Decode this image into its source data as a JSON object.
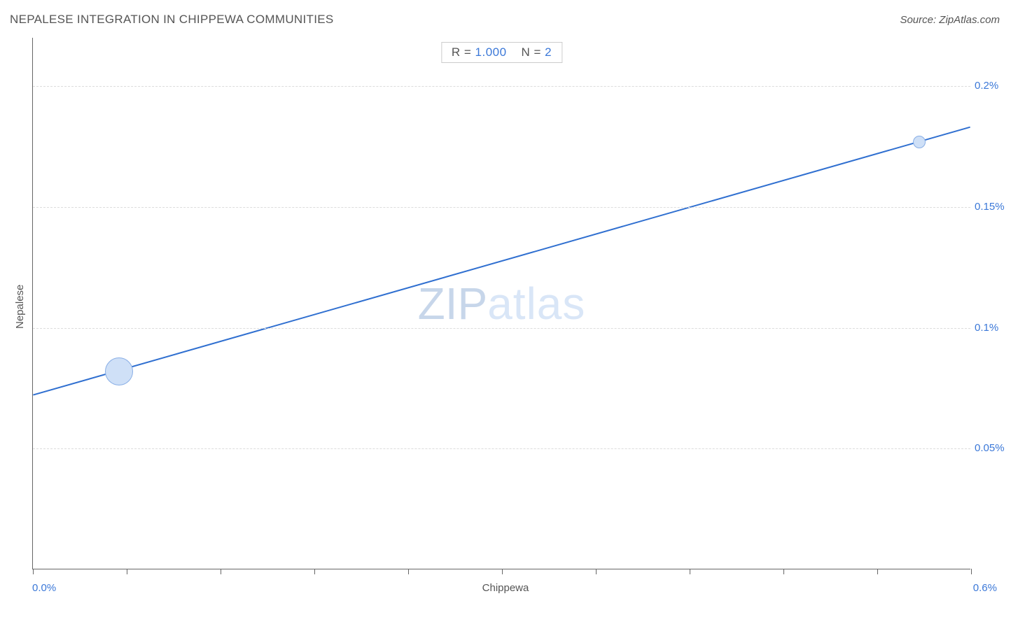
{
  "title": "NEPALESE INTEGRATION IN CHIPPEWA COMMUNITIES",
  "source": "Source: ZipAtlas.com",
  "watermark": {
    "bold": "ZIP",
    "thin": "atlas"
  },
  "stats": {
    "r_label": "R =",
    "r_value": "1.000",
    "n_label": "N =",
    "n_value": "2"
  },
  "chart": {
    "type": "scatter-regression",
    "xlabel": "Chippewa",
    "ylabel": "Nepalese",
    "x_domain": [
      0.0,
      0.6
    ],
    "y_domain": [
      0.0,
      0.22
    ],
    "x_end_labels": {
      "min": "0.0%",
      "max": "0.6%"
    },
    "y_ticks": [
      {
        "value": 0.05,
        "label": "0.05%"
      },
      {
        "value": 0.1,
        "label": "0.1%"
      },
      {
        "value": 0.15,
        "label": "0.15%"
      },
      {
        "value": 0.2,
        "label": "0.2%"
      }
    ],
    "x_tick_values": [
      0.0,
      0.06,
      0.12,
      0.18,
      0.24,
      0.3,
      0.36,
      0.42,
      0.48,
      0.54,
      0.6
    ],
    "grid_color": "#dcdcdc",
    "axis_color": "#666666",
    "background_color": "#ffffff",
    "regression_line": {
      "x1": 0.0,
      "y1": 0.072,
      "x2": 0.6,
      "y2": 0.183,
      "color": "#2f6fd0",
      "width": 2
    },
    "points": [
      {
        "x": 0.055,
        "y": 0.082,
        "r": 19,
        "fill": "#cfe0f7",
        "stroke": "#88aee6",
        "stroke_width": 1.5
      },
      {
        "x": 0.567,
        "y": 0.177,
        "r": 8,
        "fill": "#cfe0f7",
        "stroke": "#88aee6",
        "stroke_width": 1.5
      }
    ],
    "label_color": "#555555",
    "tick_label_color": "#3b78d8",
    "title_fontsize": 17,
    "label_fontsize": 15
  }
}
